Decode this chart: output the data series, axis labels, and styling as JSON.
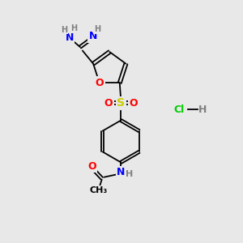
{
  "bg_color": "#e8e8e8",
  "line_color": "#000000",
  "atom_colors": {
    "N": "#0000ff",
    "O": "#ff0000",
    "S": "#cccc00",
    "H": "#808080",
    "Cl": "#00cc00",
    "C": "#000000"
  },
  "font_size_atom": 9,
  "font_size_hcl": 9
}
